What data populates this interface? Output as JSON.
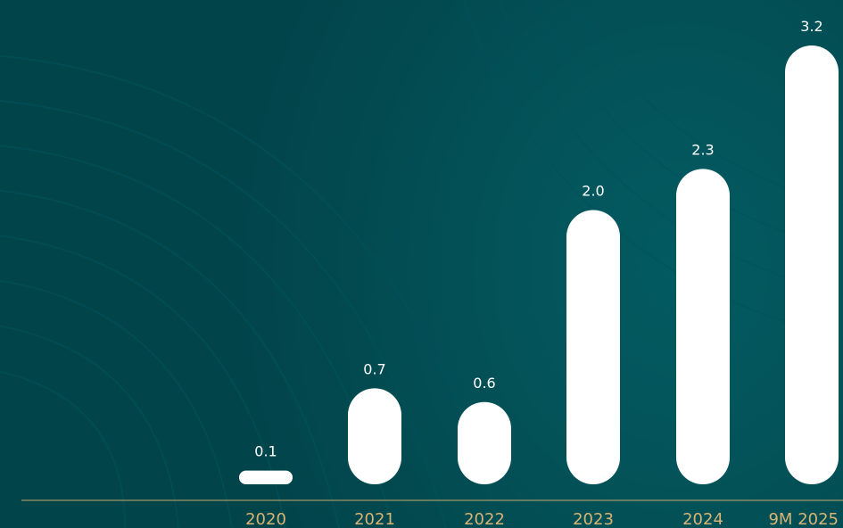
{
  "chart_data": {
    "type": "bar",
    "categories": [
      "2020",
      "2021",
      "2022",
      "2023",
      "2024",
      "9M 2025"
    ],
    "values": [
      0.1,
      0.7,
      0.6,
      2.0,
      2.3,
      3.2
    ],
    "value_labels": [
      "0.1",
      "0.7",
      "0.6",
      "2.0",
      "2.3",
      "3.2"
    ],
    "ylim": [
      0,
      3.2
    ],
    "grid": false,
    "colors": {
      "background": "#024a50",
      "bar": "#ffffff",
      "value_text": "#ffffff",
      "axis_line": "#c9a86a",
      "category_text": "#d8b474"
    }
  }
}
